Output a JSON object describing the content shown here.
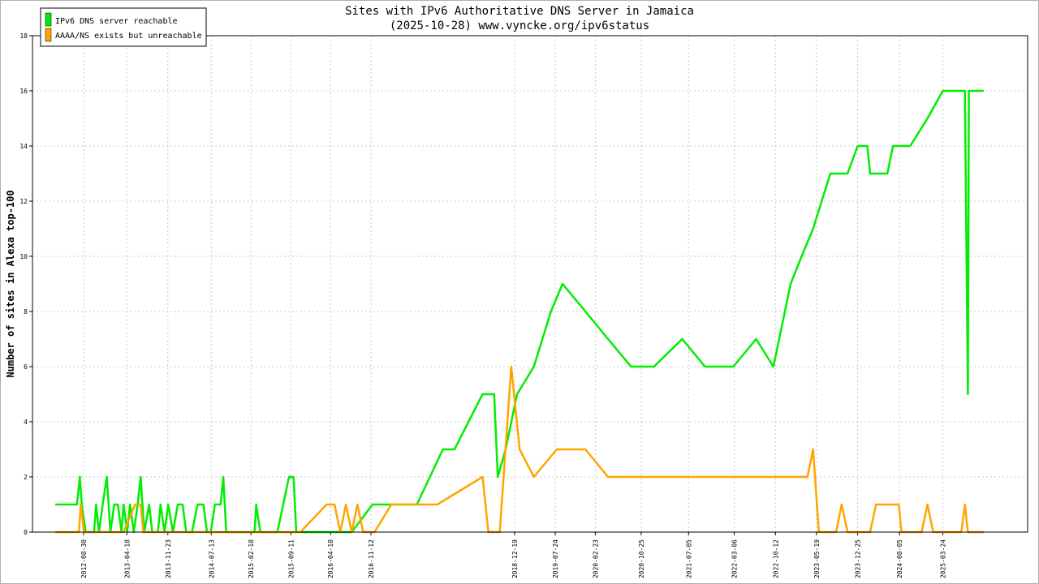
{
  "chart_data": {
    "type": "line",
    "title": "Sites with IPv6 Authoritative DNS Server in Jamaica",
    "subtitle": "(2025-10-28) www.vyncke.org/ipv6status",
    "ylabel": "Number of sites in Alexa top-100",
    "xlabel": "",
    "ylim": [
      0,
      18
    ],
    "yticks": [
      0,
      2,
      4,
      6,
      8,
      10,
      12,
      14,
      16,
      18
    ],
    "x_tick_labels": [
      "2012-08-30",
      "2013-04-18",
      "2013-11-23",
      "2014-07-13",
      "2015-02-10",
      "2015-09-11",
      "2016-04-10",
      "2016-11-12",
      "2018-12-19",
      "2019-07-24",
      "2020-02-23",
      "2020-10-25",
      "2021-07-05",
      "2022-03-06",
      "2022-10-12",
      "2023-05-19",
      "2023-12-25",
      "2024-08-05",
      "2025-03-24"
    ],
    "grid": true,
    "legend_position": "top-left",
    "series": [
      {
        "name": "IPv6 DNS server reachable",
        "color": "#00ee00",
        "points": [
          [
            "2012-04-01",
            1
          ],
          [
            "2012-07-25",
            1
          ],
          [
            "2012-08-10",
            2
          ],
          [
            "2012-08-20",
            1
          ],
          [
            "2012-09-10",
            0
          ],
          [
            "2012-10-25",
            0
          ],
          [
            "2012-11-05",
            1
          ],
          [
            "2012-11-20",
            0
          ],
          [
            "2012-12-10",
            1
          ],
          [
            "2013-01-01",
            2
          ],
          [
            "2013-01-20",
            0
          ],
          [
            "2013-02-10",
            1
          ],
          [
            "2013-03-01",
            1
          ],
          [
            "2013-03-20",
            0
          ],
          [
            "2013-04-01",
            1
          ],
          [
            "2013-04-20",
            0
          ],
          [
            "2013-05-05",
            1
          ],
          [
            "2013-05-25",
            0
          ],
          [
            "2013-06-15",
            1
          ],
          [
            "2013-07-01",
            2
          ],
          [
            "2013-07-20",
            0
          ],
          [
            "2013-08-15",
            1
          ],
          [
            "2013-09-01",
            0
          ],
          [
            "2013-10-01",
            0
          ],
          [
            "2013-10-15",
            1
          ],
          [
            "2013-11-05",
            0
          ],
          [
            "2013-11-25",
            1
          ],
          [
            "2013-12-20",
            0
          ],
          [
            "2014-01-15",
            1
          ],
          [
            "2014-02-10",
            1
          ],
          [
            "2014-03-01",
            0
          ],
          [
            "2014-04-01",
            0
          ],
          [
            "2014-05-01",
            1
          ],
          [
            "2014-06-01",
            1
          ],
          [
            "2014-06-20",
            0
          ],
          [
            "2014-07-10",
            0
          ],
          [
            "2014-08-01",
            1
          ],
          [
            "2014-09-01",
            1
          ],
          [
            "2014-09-15",
            2
          ],
          [
            "2014-10-01",
            0
          ],
          [
            "2014-11-01",
            0
          ],
          [
            "2015-03-01",
            0
          ],
          [
            "2015-03-10",
            1
          ],
          [
            "2015-04-01",
            0
          ],
          [
            "2015-07-01",
            0
          ],
          [
            "2015-08-01",
            1
          ],
          [
            "2015-09-01",
            2
          ],
          [
            "2015-09-25",
            2
          ],
          [
            "2015-10-10",
            0
          ],
          [
            "2016-01-01",
            0
          ],
          [
            "2016-08-01",
            0
          ],
          [
            "2016-11-20",
            1
          ],
          [
            "2017-03-01",
            1
          ],
          [
            "2017-07-15",
            1
          ],
          [
            "2017-12-01",
            3
          ],
          [
            "2018-02-01",
            3
          ],
          [
            "2018-07-01",
            5
          ],
          [
            "2018-09-01",
            5
          ],
          [
            "2018-09-20",
            2
          ],
          [
            "2018-11-01",
            3
          ],
          [
            "2019-01-01",
            5
          ],
          [
            "2019-04-01",
            6
          ],
          [
            "2019-07-01",
            8
          ],
          [
            "2019-09-01",
            9
          ],
          [
            "2020-01-01",
            8
          ],
          [
            "2020-05-01",
            7
          ],
          [
            "2020-09-01",
            6
          ],
          [
            "2021-01-01",
            6
          ],
          [
            "2021-06-01",
            7
          ],
          [
            "2021-10-01",
            6
          ],
          [
            "2022-03-01",
            6
          ],
          [
            "2022-07-01",
            7
          ],
          [
            "2022-10-01",
            6
          ],
          [
            "2023-01-01",
            9
          ],
          [
            "2023-03-01",
            10
          ],
          [
            "2023-05-01",
            11
          ],
          [
            "2023-08-01",
            13
          ],
          [
            "2023-11-01",
            13
          ],
          [
            "2023-12-25",
            14
          ],
          [
            "2024-02-15",
            14
          ],
          [
            "2024-03-01",
            13
          ],
          [
            "2024-06-01",
            13
          ],
          [
            "2024-07-01",
            14
          ],
          [
            "2024-10-01",
            14
          ],
          [
            "2025-01-01",
            15
          ],
          [
            "2025-03-24",
            16
          ],
          [
            "2025-07-20",
            16
          ],
          [
            "2025-08-05",
            5
          ],
          [
            "2025-08-10",
            16
          ],
          [
            "2025-10-28",
            16
          ]
        ]
      },
      {
        "name": "AAAA/NS exists but unreachable",
        "color": "#ffa500",
        "points": [
          [
            "2012-04-01",
            0
          ],
          [
            "2012-08-05",
            0
          ],
          [
            "2012-08-15",
            1
          ],
          [
            "2012-09-01",
            0
          ],
          [
            "2013-04-01",
            0
          ],
          [
            "2013-06-01",
            1
          ],
          [
            "2013-07-01",
            1
          ],
          [
            "2013-07-15",
            0
          ],
          [
            "2014-01-01",
            0
          ],
          [
            "2015-11-01",
            0
          ],
          [
            "2016-03-20",
            1
          ],
          [
            "2016-05-01",
            1
          ],
          [
            "2016-06-01",
            0
          ],
          [
            "2016-07-01",
            1
          ],
          [
            "2016-08-01",
            0
          ],
          [
            "2016-09-01",
            1
          ],
          [
            "2016-10-01",
            0
          ],
          [
            "2016-12-01",
            0
          ],
          [
            "2017-03-01",
            1
          ],
          [
            "2017-11-01",
            1
          ],
          [
            "2018-07-01",
            2
          ],
          [
            "2018-08-01",
            0
          ],
          [
            "2018-10-01",
            0
          ],
          [
            "2018-12-01",
            6
          ],
          [
            "2019-01-15",
            3
          ],
          [
            "2019-04-01",
            2
          ],
          [
            "2019-08-01",
            3
          ],
          [
            "2020-01-01",
            3
          ],
          [
            "2020-05-01",
            2
          ],
          [
            "2020-09-01",
            2
          ],
          [
            "2021-01-01",
            2
          ],
          [
            "2021-06-01",
            2
          ],
          [
            "2021-10-01",
            2
          ],
          [
            "2022-03-01",
            2
          ],
          [
            "2022-07-01",
            2
          ],
          [
            "2022-11-01",
            2
          ],
          [
            "2023-01-01",
            2
          ],
          [
            "2023-04-01",
            2
          ],
          [
            "2023-05-01",
            3
          ],
          [
            "2023-06-01",
            0
          ],
          [
            "2023-09-01",
            0
          ],
          [
            "2023-10-01",
            1
          ],
          [
            "2023-11-01",
            0
          ],
          [
            "2024-03-01",
            0
          ],
          [
            "2024-04-01",
            1
          ],
          [
            "2024-08-01",
            1
          ],
          [
            "2024-08-15",
            0
          ],
          [
            "2024-12-01",
            0
          ],
          [
            "2025-01-01",
            1
          ],
          [
            "2025-02-01",
            0
          ],
          [
            "2025-07-01",
            0
          ],
          [
            "2025-07-20",
            1
          ],
          [
            "2025-08-05",
            0
          ],
          [
            "2025-10-28",
            0
          ]
        ]
      }
    ]
  }
}
